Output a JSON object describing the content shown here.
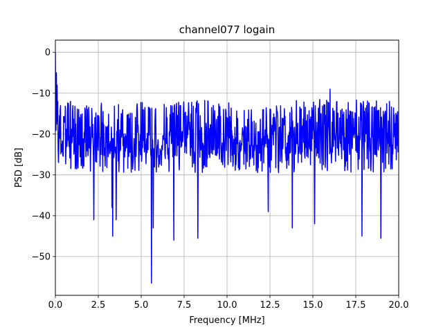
{
  "chart_data": {
    "type": "line",
    "title": "channel077 logain",
    "xlabel": "Frequency [MHz]",
    "ylabel": "PSD [dB]",
    "xlim": [
      0,
      20
    ],
    "ylim": [
      -59.5,
      3
    ],
    "x_ticks": [
      "0.0",
      "2.5",
      "5.0",
      "7.5",
      "10.0",
      "12.5",
      "15.0",
      "17.5",
      "20.0"
    ],
    "x_tick_values": [
      0,
      2.5,
      5,
      7.5,
      10,
      12.5,
      15,
      17.5,
      20
    ],
    "y_ticks": [
      "0",
      "−10",
      "−20",
      "−30",
      "−40",
      "−50"
    ],
    "y_tick_values": [
      0,
      -10,
      -20,
      -30,
      -40,
      -50
    ],
    "grid": true,
    "series": [
      {
        "color": "#0000ff",
        "x_start": 0,
        "x_step": 0.02,
        "noise_floor_db": -20.5,
        "x": [
          0,
          0.05,
          0.1,
          0.15,
          0.2,
          0.3,
          2.25,
          3.3,
          3.35,
          3.55,
          5.6,
          5.7,
          6.9,
          8.3,
          12.4,
          13.8,
          15.1,
          16.0,
          17.85,
          18.95
        ],
        "y": [
          0,
          -5,
          -8,
          -12,
          -24,
          -13,
          -41,
          -38,
          -45,
          -41,
          -56.5,
          -43,
          -46,
          -45.5,
          -39,
          -43,
          -42,
          -9,
          -45,
          -45.5
        ]
      }
    ]
  }
}
